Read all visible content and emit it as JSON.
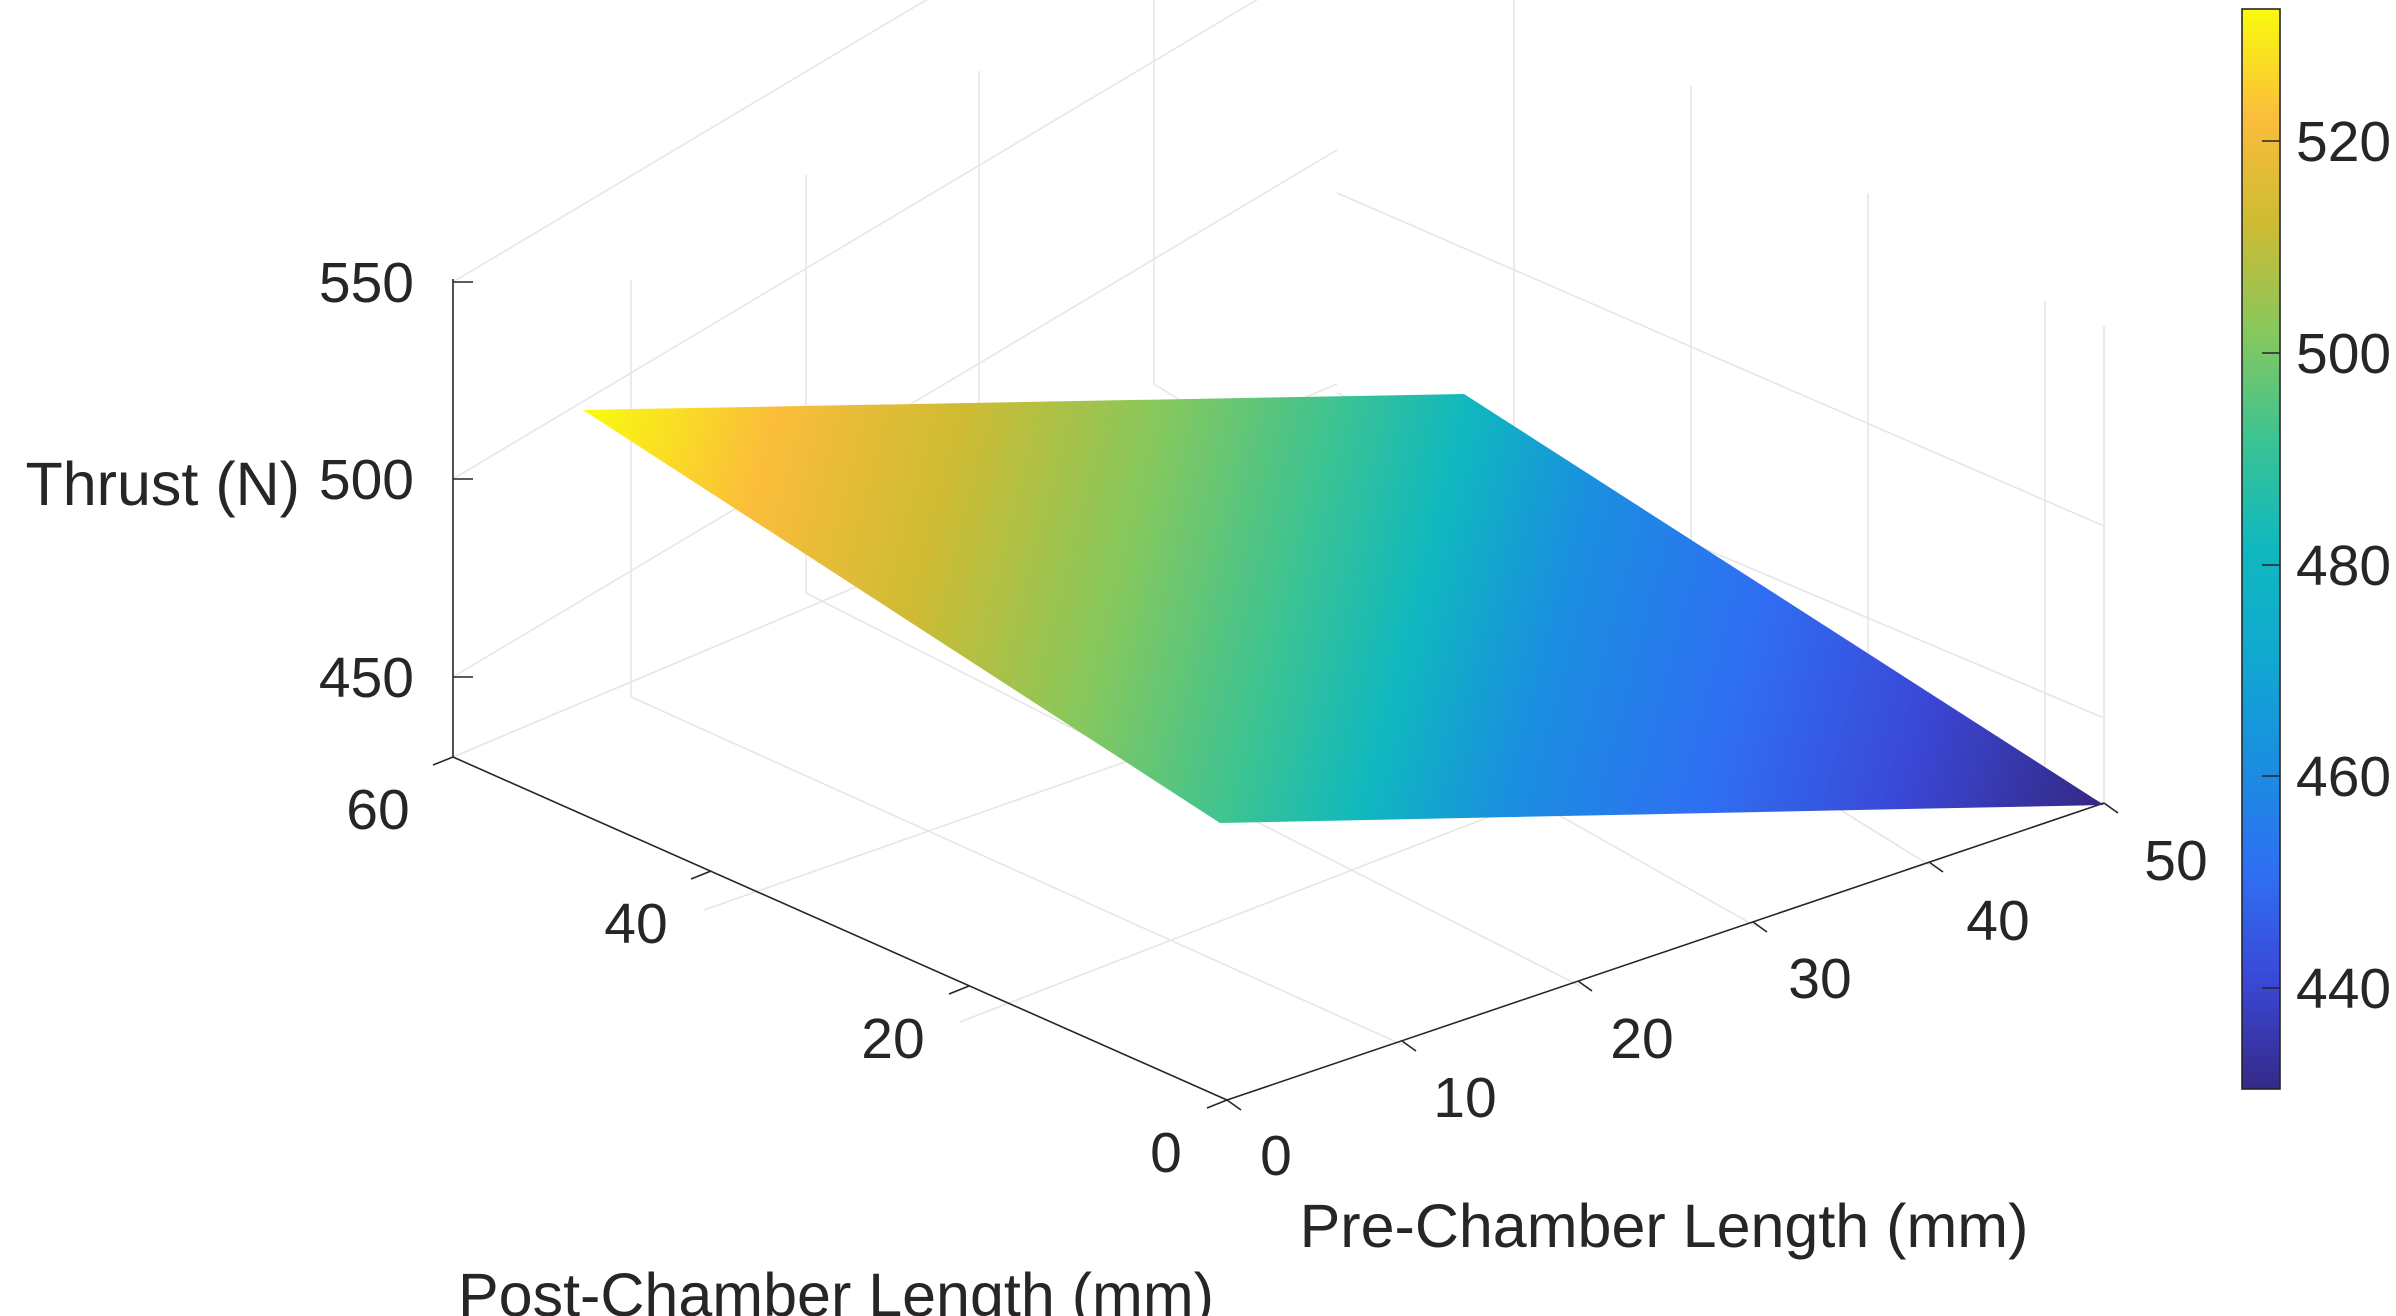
{
  "chart_data": {
    "type": "surface",
    "xlabel": "Post-Chamber Length (mm)",
    "ylabel": "Pre-Chamber Length (mm)",
    "zlabel": "Thrust (N)",
    "xlim": [
      0,
      60
    ],
    "ylim": [
      0,
      50
    ],
    "zlim": [
      430,
      550
    ],
    "x_ticks": [
      "0",
      "20",
      "40",
      "60"
    ],
    "y_ticks": [
      "0",
      "10",
      "20",
      "30",
      "40",
      "50"
    ],
    "z_ticks": [
      "450",
      "500",
      "550"
    ],
    "grid": true,
    "colormap": "parula",
    "colorbar": {
      "position": "right",
      "range": [
        431,
        533
      ],
      "ticks": [
        "440",
        "460",
        "480",
        "500",
        "520"
      ]
    },
    "corners": [
      {
        "post_chamber": 0,
        "pre_chamber": 0,
        "thrust": 490
      },
      {
        "post_chamber": 60,
        "pre_chamber": 0,
        "thrust": 533
      },
      {
        "post_chamber": 60,
        "pre_chamber": 50,
        "thrust": 474
      },
      {
        "post_chamber": 0,
        "pre_chamber": 50,
        "thrust": 431
      }
    ]
  }
}
